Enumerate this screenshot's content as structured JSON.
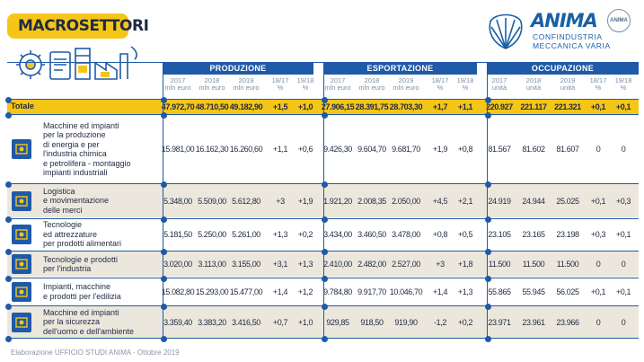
{
  "title": "MACROSETTORI",
  "logo": {
    "brand": "ANIMA",
    "badge": "ANIMA",
    "line1": "CONFINDUSTRIA",
    "line2": "MECCANICA VARIA"
  },
  "groups": {
    "produzione": "PRODUZIONE",
    "esportazione": "ESPORTAZIONE",
    "occupazione": "OCCUPAZIONE"
  },
  "subheaders": {
    "prod": [
      {
        "top": "2017",
        "bottom": "mln euro"
      },
      {
        "top": "2018",
        "bottom": "mln euro"
      },
      {
        "top": "2019",
        "bottom": "mln euro"
      },
      {
        "top": "18/17",
        "bottom": "%"
      },
      {
        "top": "19/18",
        "bottom": "%"
      }
    ],
    "exp": [
      {
        "top": "2017",
        "bottom": "mln euro"
      },
      {
        "top": "2018",
        "bottom": "mln euro"
      },
      {
        "top": "2019",
        "bottom": "mln euro"
      },
      {
        "top": "18/17",
        "bottom": "%"
      },
      {
        "top": "19/18",
        "bottom": "%"
      }
    ],
    "occ": [
      {
        "top": "2017",
        "bottom": "unità"
      },
      {
        "top": "2018",
        "bottom": "unità"
      },
      {
        "top": "2019",
        "bottom": "unità"
      },
      {
        "top": "18/17",
        "bottom": "%"
      },
      {
        "top": "19/18",
        "bottom": "%"
      }
    ]
  },
  "totale": {
    "label": "Totale",
    "values": [
      "47.972,70",
      "48.710,50",
      "49.182,90",
      "+1,5",
      "+1,0",
      "27.906,15",
      "28.391,75",
      "28.703,30",
      "+1,7",
      "+1,1",
      "220.927",
      "221.117",
      "221.321",
      "+0,1",
      "+0,1"
    ]
  },
  "rows": [
    {
      "label_lines": [
        "Macchine ed impianti",
        "per la produzione",
        "di energia e per",
        "l'industria chimica",
        "e petrolifera - montaggio",
        "impianti industriali"
      ],
      "icon": "industrial-plant-icon",
      "values": [
        "15.981,00",
        "16.162,30",
        "16.260,60",
        "+1,1",
        "+0,6",
        "9.426,30",
        "9.604,70",
        "9.681,70",
        "+1,9",
        "+0,8",
        "81.567",
        "81.602",
        "81.607",
        "0",
        "0"
      ]
    },
    {
      "label_lines": [
        "Logistica",
        "e movimentazione",
        "delle merci"
      ],
      "icon": "logistics-icon",
      "values": [
        "5.348,00",
        "5.509,00",
        "5.612,80",
        "+3",
        "+1,9",
        "1.921,20",
        "2.008,35",
        "2.050,00",
        "+4,5",
        "+2,1",
        "24.919",
        "24.944",
        "25.025",
        "+0,1",
        "+0,3"
      ]
    },
    {
      "label_lines": [
        "Tecnologie",
        "ed attrezzature",
        "per prodotti alimentari"
      ],
      "icon": "food-equipment-icon",
      "values": [
        "5.181,50",
        "5.250,00",
        "5.261,00",
        "+1,3",
        "+0,2",
        "3.434,00",
        "3.460,50",
        "3.478,00",
        "+0,8",
        "+0,5",
        "23.105",
        "23.165",
        "23.198",
        "+0,3",
        "+0,1"
      ]
    },
    {
      "label_lines": [
        "Tecnologie e prodotti",
        "per l'industria"
      ],
      "icon": "industry-gears-icon",
      "values": [
        "3.020,00",
        "3.113,00",
        "3.155,00",
        "+3,1",
        "+1,3",
        "2.410,00",
        "2.482,00",
        "2.527,00",
        "+3",
        "+1,8",
        "11.500",
        "11.500",
        "11.500",
        "0",
        "0"
      ]
    },
    {
      "label_lines": [
        "Impianti, macchine",
        "e prodotti per l'edilizia"
      ],
      "icon": "construction-icon",
      "values": [
        "15.082,80",
        "15.293,00",
        "15.477,00",
        "+1,4",
        "+1,2",
        "9.784,80",
        "9.917,70",
        "10.046,70",
        "+1,4",
        "+1,3",
        "55.865",
        "55.945",
        "56.025",
        "+0,1",
        "+0,1"
      ]
    },
    {
      "label_lines": [
        "Macchine ed impianti",
        "per la sicurezza",
        "dell'uomo e dell'ambiente"
      ],
      "icon": "safety-icon",
      "values": [
        "3.359,40",
        "3.383,20",
        "3.416,50",
        "+0,7",
        "+1,0",
        "929,85",
        "918,50",
        "919,90",
        "-1,2",
        "+0,2",
        "23.971",
        "23.961",
        "23.966",
        "0",
        "0"
      ]
    }
  ],
  "footer": "Elaborazione UFFICIO STUDI ANIMA - Ottobre 2019",
  "colors": {
    "accent": "#f5c518",
    "brand": "#1f5aa8",
    "text": "#1f2a44",
    "shade": "#ece7dc"
  }
}
